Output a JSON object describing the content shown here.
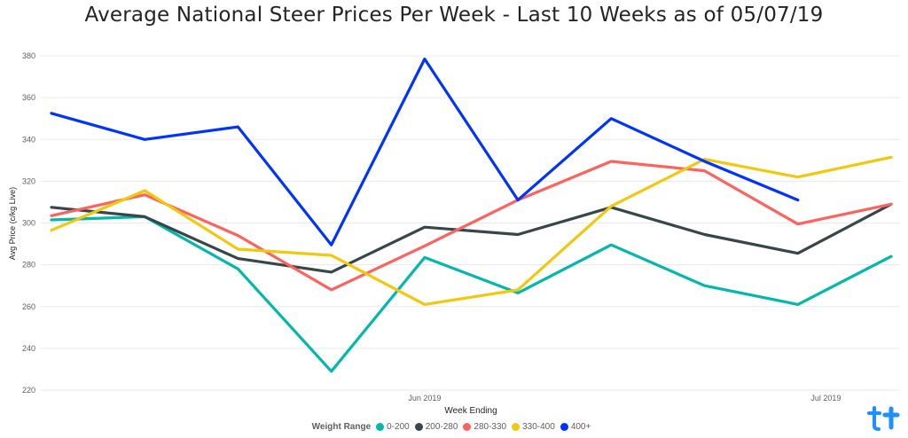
{
  "chart_data": {
    "type": "line",
    "title": "Average National Steer Prices Per Week - Last 10 Weeks as of 05/07/19",
    "xlabel": "Week Ending",
    "ylabel": "Avg Price (c/kg Live)",
    "ylim": [
      220,
      380
    ],
    "yticks": [
      220,
      240,
      260,
      280,
      300,
      320,
      340,
      360,
      380
    ],
    "xtick_labels": [
      {
        "label": "Jun 2019",
        "at_index": 4
      },
      {
        "label": "Jul 2019",
        "at_index": 8.3
      }
    ],
    "x": [
      0,
      1,
      2,
      3,
      4,
      5,
      6,
      7,
      8,
      9
    ],
    "grid": true,
    "legend_title": "Weight Range",
    "legend_position": "bottom",
    "series": [
      {
        "name": "0-200",
        "color": "#01b8aa",
        "values": [
          301.5,
          303,
          278,
          229,
          283.5,
          266.5,
          289.5,
          270,
          261,
          284
        ]
      },
      {
        "name": "200-280",
        "color": "#374649",
        "values": [
          307.5,
          303,
          283,
          276.5,
          298,
          294.5,
          307.5,
          294.5,
          285.5,
          309
        ]
      },
      {
        "name": "280-330",
        "color": "#fd625e",
        "values": [
          303.5,
          313.5,
          294,
          268,
          289,
          311,
          329.5,
          325,
          299.5,
          309
        ]
      },
      {
        "name": "330-400",
        "color": "#f2c80f",
        "values": [
          296.5,
          315.5,
          287.5,
          284.5,
          261,
          268,
          308,
          330.5,
          322,
          331.5
        ]
      },
      {
        "name": "400+",
        "color": "#0033ff",
        "values": [
          352.5,
          340,
          346,
          289.5,
          378.5,
          311,
          350,
          329.5,
          311,
          null
        ]
      }
    ]
  },
  "logo": {
    "name": "app-logo"
  }
}
